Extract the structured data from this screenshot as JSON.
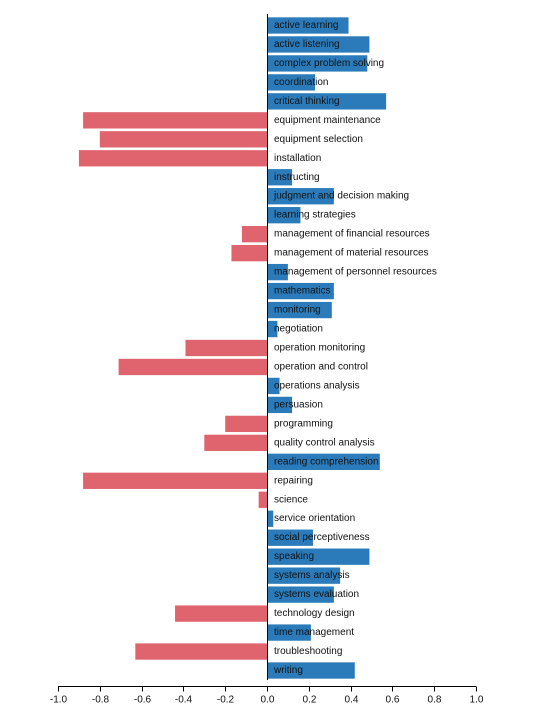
{
  "chart_data": {
    "type": "bar",
    "orientation": "horizontal",
    "title": "",
    "xlabel": "",
    "ylabel": "",
    "xlim": [
      -1.0,
      1.0
    ],
    "xticks": [
      "-1.0",
      "-0.8",
      "-0.6",
      "-0.4",
      "-0.2",
      "0.0",
      "0.2",
      "0.4",
      "0.6",
      "0.8",
      "1.0"
    ],
    "grid": false,
    "legend": false,
    "colors": {
      "positive": "#2b7bba",
      "negative": "#e0646e",
      "axis": "#000000"
    },
    "categories": [
      "active learning",
      "active listening",
      "complex problem solving",
      "coordination",
      "critical thinking",
      "equipment maintenance",
      "equipment selection",
      "installation",
      "instructing",
      "judgment and decision making",
      "learning strategies",
      "management of financial resources",
      "management of material resources",
      "management of personnel resources",
      "mathematics",
      "monitoring",
      "negotiation",
      "operation monitoring",
      "operation and control",
      "operations analysis",
      "persuasion",
      "programming",
      "quality control analysis",
      "reading comprehension",
      "repairing",
      "science",
      "service orientation",
      "social perceptiveness",
      "speaking",
      "systems analysis",
      "systems evaluation",
      "technology design",
      "time management",
      "troubleshooting",
      "writing"
    ],
    "values": [
      0.39,
      0.49,
      0.48,
      0.23,
      0.57,
      -0.88,
      -0.8,
      -0.9,
      0.12,
      0.32,
      0.16,
      -0.12,
      -0.17,
      0.1,
      0.32,
      0.31,
      0.05,
      -0.39,
      -0.71,
      0.06,
      0.12,
      -0.2,
      -0.3,
      0.54,
      -0.88,
      -0.04,
      0.03,
      0.22,
      0.49,
      0.35,
      0.32,
      -0.44,
      0.21,
      -0.63,
      0.42
    ]
  }
}
